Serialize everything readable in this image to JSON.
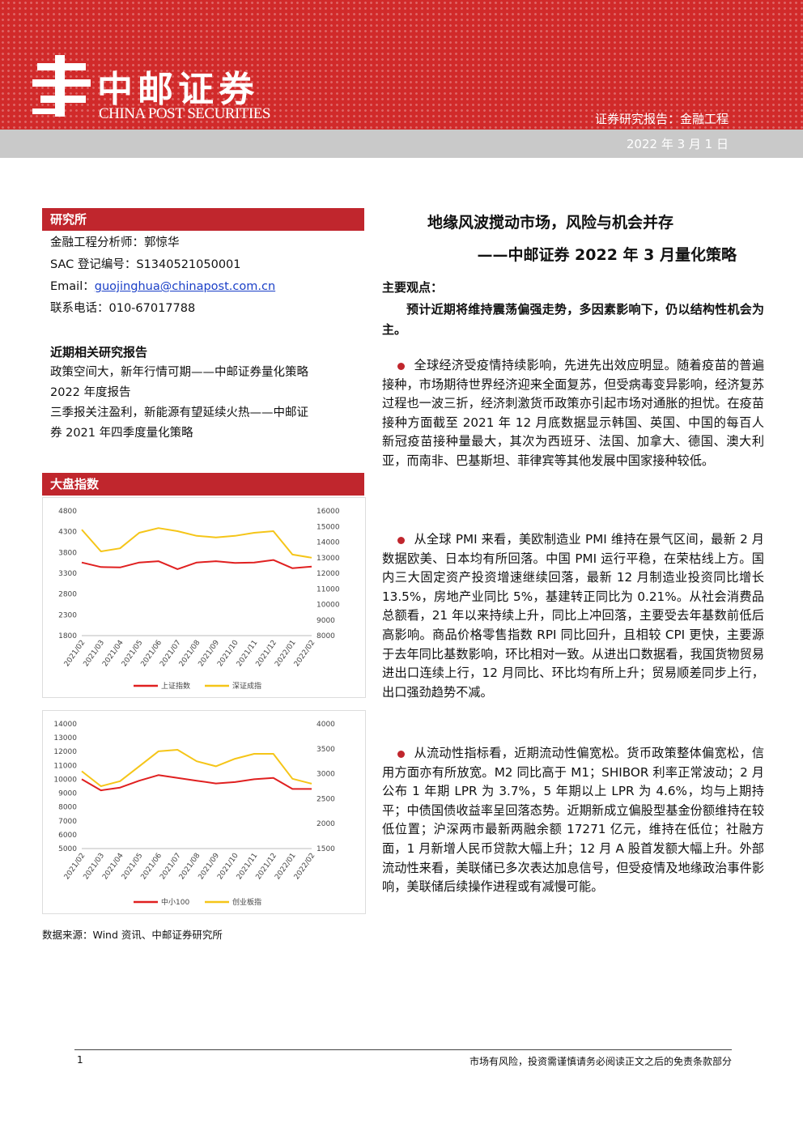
{
  "header": {
    "brand_cn": "中邮证券",
    "brand_en": "CHINA POST SECURITIES",
    "report_type": "证券研究报告：金融工程",
    "date": "2022 年 3 月 1 日"
  },
  "research": {
    "heading": "研究所",
    "analyst": "金融工程分析师：郭惊华",
    "sac": "SAC 登记编号：S1340521050001",
    "email_label": "Email：",
    "email": "guojinghua@chinapost.com.cn",
    "phone": "联系电话：010-67017788"
  },
  "related": {
    "heading": "近期相关研究报告",
    "lines": [
      "政策空间大，新年行情可期——中邮证券量化策略",
      "2022 年度报告",
      "三季报关注盈利，新能源有望延续火热——中邮证",
      "券 2021 年四季度量化策略"
    ]
  },
  "index_section": {
    "heading": "大盘指数"
  },
  "source": "数据来源：Wind 资讯、中邮证券研究所",
  "title": {
    "line1": "地缘风波搅动市场，风险与机会并存",
    "line2": "——中邮证券 2022 年 3 月量化策略"
  },
  "views": {
    "heading": "主要观点：",
    "summary": "预计近期将维持震荡偏强走势，多因素影响下，仍以结构性机会为主。",
    "paragraphs": [
      "全球经济受疫情持续影响，先进先出效应明显。随着疫苗的普遍接种，市场期待世界经济迎来全面复苏，但受病毒变异影响，经济复苏过程也一波三折，经济刺激货币政策亦引起市场对通胀的担忧。在疫苗接种方面截至 2021 年 12 月底数据显示韩国、英国、中国的每百人新冠疫苗接种量最大，其次为西班牙、法国、加拿大、德国、澳大利亚，而南非、巴基斯坦、菲律宾等其他发展中国家接种较低。",
      "从全球 PMI 来看，美欧制造业 PMI 维持在景气区间，最新 2 月数据欧美、日本均有所回落。中国 PMI 运行平稳，在荣枯线上方。国内三大固定资产投资增速继续回落，最新 12 月制造业投资同比增长 13.5%，房地产业同比 5%，基建转正同比为 0.21%。从社会消费品总额看，21 年以来持续上升，同比上冲回落，主要受去年基数前低后高影响。商品价格零售指数 RPI 同比回升，且相较 CPI 更快，主要源于去年同比基数影响，环比相对一致。从进出口数据看，我国货物贸易进出口连续上行，12 月同比、环比均有所上升；贸易顺差同步上行，出口强劲趋势不减。",
      "从流动性指标看，近期流动性偏宽松。货币政策整体偏宽松，信用方面亦有所放宽。M2 同比高于 M1；SHIBOR 利率正常波动；2 月公布 1 年期 LPR 为 3.7%，5 年期以上 LPR 为 4.6%，均与上期持平；中债国债收益率呈回落态势。近期新成立偏股型基金份额维持在较低位置；沪深两市最新两融余额 17271 亿元，维持在低位；社融方面，1 月新增人民币贷款大幅上升；12 月 A 股首发额大幅上升。外部流动性来看，美联储已多次表达加息信号，但受疫情及地缘政治事件影响，美联储后续操作进程或有减慢可能。"
    ]
  },
  "footer": {
    "page": "1",
    "disclaimer": "市场有风险，投资需谨慎请务必阅读正文之后的免责条款部分"
  },
  "colors": {
    "red": "#e02020",
    "yellow": "#f5c518",
    "accent": "#c0262d"
  },
  "chart_data": [
    {
      "type": "line",
      "x": [
        "2021/02",
        "2021/03",
        "2021/04",
        "2021/05",
        "2021/06",
        "2021/07",
        "2021/08",
        "2021/09",
        "2021/10",
        "2021/11",
        "2021/12",
        "2022/01",
        "2022/02"
      ],
      "series": [
        {
          "name": "上证指数",
          "axis": "left",
          "values": [
            3560,
            3450,
            3440,
            3560,
            3590,
            3400,
            3560,
            3590,
            3550,
            3560,
            3620,
            3420,
            3460
          ]
        },
        {
          "name": "深证成指",
          "axis": "right",
          "values": [
            14800,
            13400,
            13600,
            14600,
            14900,
            14700,
            14400,
            14300,
            14400,
            14600,
            14700,
            13200,
            13000
          ]
        }
      ],
      "ylim_left": [
        1800,
        4800
      ],
      "yticks_left": [
        1800,
        2300,
        2800,
        3300,
        3800,
        4300,
        4800
      ],
      "ylim_right": [
        8000,
        16000
      ],
      "yticks_right": [
        8000,
        9000,
        10000,
        11000,
        12000,
        13000,
        14000,
        15000,
        16000
      ],
      "legend": "bottom"
    },
    {
      "type": "line",
      "x": [
        "2021/02",
        "2021/03",
        "2021/04",
        "2021/05",
        "2021/06",
        "2021/07",
        "2021/08",
        "2021/09",
        "2021/10",
        "2021/11",
        "2021/12",
        "2022/01",
        "2022/02"
      ],
      "series": [
        {
          "name": "中小100",
          "axis": "left",
          "values": [
            10000,
            9200,
            9400,
            9900,
            10300,
            10100,
            9900,
            9700,
            9800,
            10000,
            10100,
            9300,
            9300
          ]
        },
        {
          "name": "创业板指",
          "axis": "right",
          "values": [
            3050,
            2750,
            2850,
            3150,
            3450,
            3480,
            3250,
            3150,
            3300,
            3400,
            3400,
            2900,
            2800
          ]
        }
      ],
      "ylim_left": [
        5000,
        14000
      ],
      "yticks_left": [
        5000,
        6000,
        7000,
        8000,
        9000,
        10000,
        11000,
        12000,
        13000,
        14000
      ],
      "ylim_right": [
        1500,
        4000
      ],
      "yticks_right": [
        1500,
        2000,
        2500,
        3000,
        3500,
        4000
      ],
      "legend": "bottom"
    }
  ]
}
